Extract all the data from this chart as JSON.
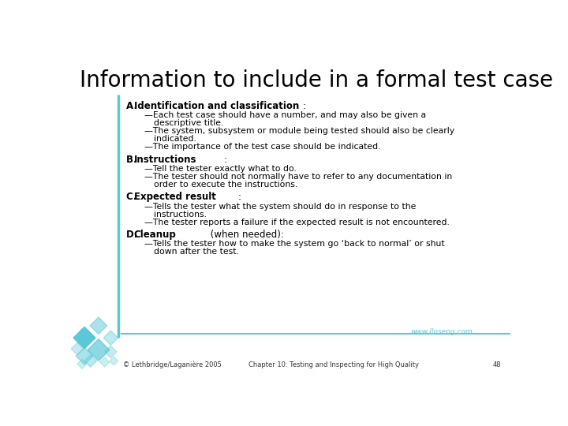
{
  "title": "Information to include in a formal test case",
  "title_fontsize": 20,
  "title_color": "#000000",
  "background_color": "#ffffff",
  "accent_color": "#5bc8d8",
  "text_color": "#000000",
  "footer_url": "www.lloseng.com",
  "footer_left": "© Lethbridge/Laganière 2005",
  "footer_chapter": "Chapter 10: Testing and Inspecting for High Quality",
  "footer_page": "48",
  "sections": [
    {
      "label": "A. ",
      "heading_bold": "Identification and classification",
      "heading_normal": ":",
      "items": [
        [
          "—Each test case should have a number, and may also be given a",
          "    descriptive title."
        ],
        [
          "—The system, subsystem or module being tested should also be clearly",
          "    indicated."
        ],
        [
          "—The importance of the test case should be indicated."
        ]
      ]
    },
    {
      "label": "B. ",
      "heading_bold": "Instructions",
      "heading_normal": ":",
      "items": [
        [
          "—Tell the tester exactly what to do."
        ],
        [
          "—The tester should not normally have to refer to any documentation in",
          "    order to execute the instructions."
        ]
      ]
    },
    {
      "label": "C. ",
      "heading_bold": "Expected result",
      "heading_normal": ":",
      "items": [
        [
          "—Tells the tester what the system should do in response to the",
          "    instructions."
        ],
        [
          "—The tester reports a failure if the expected result is not encountered."
        ]
      ]
    },
    {
      "label": "D. ",
      "heading_bold": "Cleanup",
      "heading_normal": " (when needed):",
      "items": [
        [
          "—Tells the tester how to make the system go ‘back to normal’ or shut",
          "    down after the test."
        ]
      ]
    }
  ]
}
